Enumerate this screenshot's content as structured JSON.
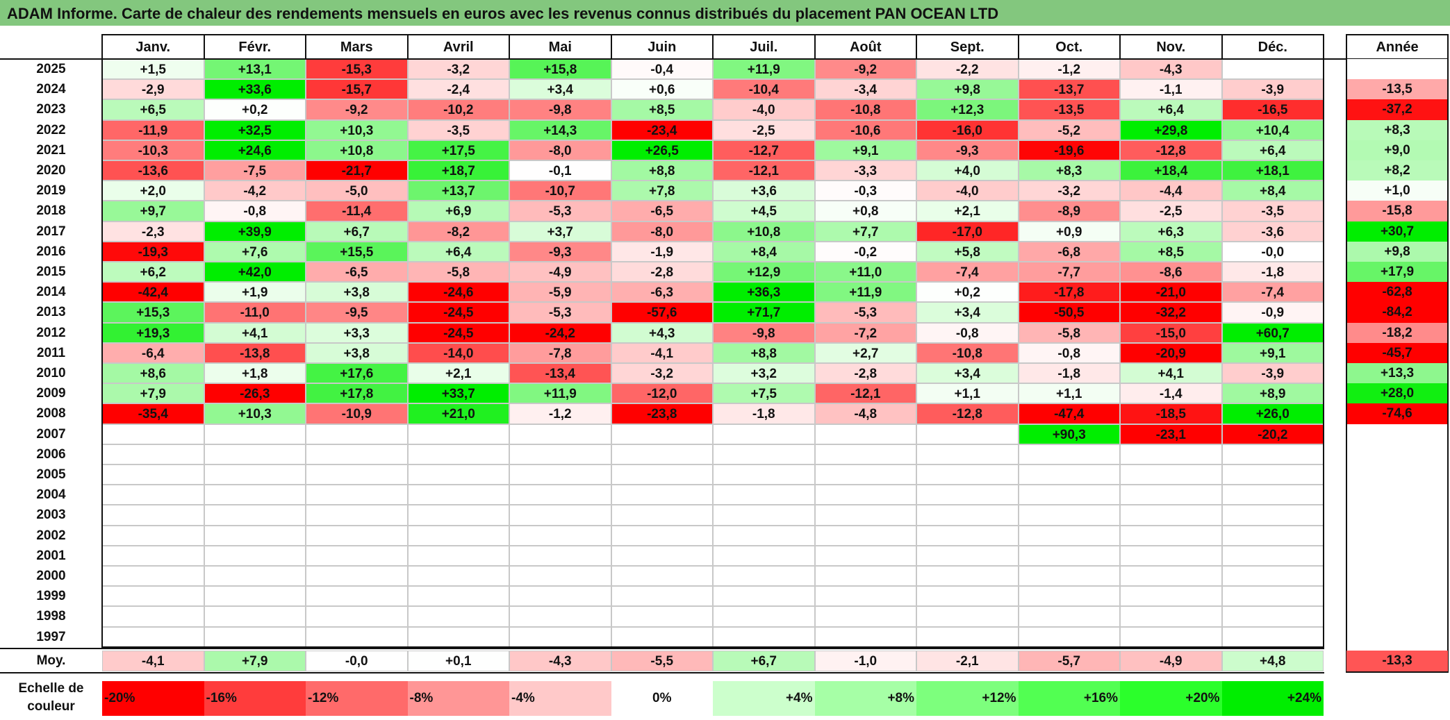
{
  "title": "ADAM Informe. Carte de chaleur des rendements mensuels en euros avec les revenus connus distribués du placement PAN OCEAN LTD",
  "chart_data": {
    "type": "heatmap",
    "title": "ADAM Informe. Carte de chaleur des rendements mensuels en euros avec les revenus connus distribués du placement PAN OCEAN LTD",
    "months": [
      "Janv.",
      "Févr.",
      "Mars",
      "Avril",
      "Mai",
      "Juin",
      "Juil.",
      "Août",
      "Sept.",
      "Oct.",
      "Nov.",
      "Déc."
    ],
    "year_header": "Année",
    "avg_label": "Moy.",
    "rows": [
      {
        "year": "2025",
        "values": [
          "+1,5",
          "+13,1",
          "-15,3",
          "-3,2",
          "+15,8",
          "-0,4",
          "+11,9",
          "-9,2",
          "-2,2",
          "-1,2",
          "-4,3",
          ""
        ],
        "annual": ""
      },
      {
        "year": "2024",
        "values": [
          "-2,9",
          "+33,6",
          "-15,7",
          "-2,4",
          "+3,4",
          "+0,6",
          "-10,4",
          "-3,4",
          "+9,8",
          "-13,7",
          "-1,1",
          "-3,9"
        ],
        "annual": "-13,5"
      },
      {
        "year": "2023",
        "values": [
          "+6,5",
          "+0,2",
          "-9,2",
          "-10,2",
          "-9,8",
          "+8,5",
          "-4,0",
          "-10,8",
          "+12,3",
          "-13,5",
          "+6,4",
          "-16,5"
        ],
        "annual": "-37,2"
      },
      {
        "year": "2022",
        "values": [
          "-11,9",
          "+32,5",
          "+10,3",
          "-3,5",
          "+14,3",
          "-23,4",
          "-2,5",
          "-10,6",
          "-16,0",
          "-5,2",
          "+29,8",
          "+10,4"
        ],
        "annual": "+8,3"
      },
      {
        "year": "2021",
        "values": [
          "-10,3",
          "+24,6",
          "+10,8",
          "+17,5",
          "-8,0",
          "+26,5",
          "-12,7",
          "+9,1",
          "-9,3",
          "-19,6",
          "-12,8",
          "+6,4"
        ],
        "annual": "+9,0"
      },
      {
        "year": "2020",
        "values": [
          "-13,6",
          "-7,5",
          "-21,7",
          "+18,7",
          "-0,1",
          "+8,8",
          "-12,1",
          "-3,3",
          "+4,0",
          "+8,3",
          "+18,4",
          "+18,1"
        ],
        "annual": "+8,2"
      },
      {
        "year": "2019",
        "values": [
          "+2,0",
          "-4,2",
          "-5,0",
          "+13,7",
          "-10,7",
          "+7,8",
          "+3,6",
          "-0,3",
          "-4,0",
          "-3,2",
          "-4,4",
          "+8,4"
        ],
        "annual": "+1,0"
      },
      {
        "year": "2018",
        "values": [
          "+9,7",
          "-0,8",
          "-11,4",
          "+6,9",
          "-5,3",
          "-6,5",
          "+4,5",
          "+0,8",
          "+2,1",
          "-8,9",
          "-2,5",
          "-3,5"
        ],
        "annual": "-15,8"
      },
      {
        "year": "2017",
        "values": [
          "-2,3",
          "+39,9",
          "+6,7",
          "-8,2",
          "+3,7",
          "-8,0",
          "+10,8",
          "+7,7",
          "-17,0",
          "+0,9",
          "+6,3",
          "-3,6"
        ],
        "annual": "+30,7"
      },
      {
        "year": "2016",
        "values": [
          "-19,3",
          "+7,6",
          "+15,5",
          "+6,4",
          "-9,3",
          "-1,9",
          "+8,4",
          "-0,2",
          "+5,8",
          "-6,8",
          "+8,5",
          "-0,0"
        ],
        "annual": "+9,8"
      },
      {
        "year": "2015",
        "values": [
          "+6,2",
          "+42,0",
          "-6,5",
          "-5,8",
          "-4,9",
          "-2,8",
          "+12,9",
          "+11,0",
          "-7,4",
          "-7,7",
          "-8,6",
          "-1,8"
        ],
        "annual": "+17,9"
      },
      {
        "year": "2014",
        "values": [
          "-42,4",
          "+1,9",
          "+3,8",
          "-24,6",
          "-5,9",
          "-6,3",
          "+36,3",
          "+11,9",
          "+0,2",
          "-17,8",
          "-21,0",
          "-7,4"
        ],
        "annual": "-62,8"
      },
      {
        "year": "2013",
        "values": [
          "+15,3",
          "-11,0",
          "-9,5",
          "-24,5",
          "-5,3",
          "-57,6",
          "+71,7",
          "-5,3",
          "+3,4",
          "-50,5",
          "-32,2",
          "-0,9"
        ],
        "annual": "-84,2"
      },
      {
        "year": "2012",
        "values": [
          "+19,3",
          "+4,1",
          "+3,3",
          "-24,5",
          "-24,2",
          "+4,3",
          "-9,8",
          "-7,2",
          "-0,8",
          "-5,8",
          "-15,0",
          "+60,7"
        ],
        "annual": "-18,2"
      },
      {
        "year": "2011",
        "values": [
          "-6,4",
          "-13,8",
          "+3,8",
          "-14,0",
          "-7,8",
          "-4,1",
          "+8,8",
          "+2,7",
          "-10,8",
          "-0,8",
          "-20,9",
          "+9,1"
        ],
        "annual": "-45,7"
      },
      {
        "year": "2010",
        "values": [
          "+8,6",
          "+1,8",
          "+17,6",
          "+2,1",
          "-13,4",
          "-3,2",
          "+3,2",
          "-2,8",
          "+3,4",
          "-1,8",
          "+4,1",
          "-3,9"
        ],
        "annual": "+13,3"
      },
      {
        "year": "2009",
        "values": [
          "+7,9",
          "-26,3",
          "+17,8",
          "+33,7",
          "+11,9",
          "-12,0",
          "+7,5",
          "-12,1",
          "+1,1",
          "+1,1",
          "-1,4",
          "+8,9"
        ],
        "annual": "+28,0"
      },
      {
        "year": "2008",
        "values": [
          "-35,4",
          "+10,3",
          "-10,9",
          "+21,0",
          "-1,2",
          "-23,8",
          "-1,8",
          "-4,8",
          "-12,8",
          "-47,4",
          "-18,5",
          "+26,0"
        ],
        "annual": "-74,6"
      },
      {
        "year": "2007",
        "values": [
          "",
          "",
          "",
          "",
          "",
          "",
          "",
          "",
          "",
          "+90,3",
          "-23,1",
          "-20,2"
        ],
        "annual": ""
      },
      {
        "year": "2006",
        "values": [
          "",
          "",
          "",
          "",
          "",
          "",
          "",
          "",
          "",
          "",
          "",
          ""
        ],
        "annual": ""
      },
      {
        "year": "2005",
        "values": [
          "",
          "",
          "",
          "",
          "",
          "",
          "",
          "",
          "",
          "",
          "",
          ""
        ],
        "annual": ""
      },
      {
        "year": "2004",
        "values": [
          "",
          "",
          "",
          "",
          "",
          "",
          "",
          "",
          "",
          "",
          "",
          ""
        ],
        "annual": ""
      },
      {
        "year": "2003",
        "values": [
          "",
          "",
          "",
          "",
          "",
          "",
          "",
          "",
          "",
          "",
          "",
          ""
        ],
        "annual": ""
      },
      {
        "year": "2002",
        "values": [
          "",
          "",
          "",
          "",
          "",
          "",
          "",
          "",
          "",
          "",
          "",
          ""
        ],
        "annual": ""
      },
      {
        "year": "2001",
        "values": [
          "",
          "",
          "",
          "",
          "",
          "",
          "",
          "",
          "",
          "",
          "",
          ""
        ],
        "annual": ""
      },
      {
        "year": "2000",
        "values": [
          "",
          "",
          "",
          "",
          "",
          "",
          "",
          "",
          "",
          "",
          "",
          ""
        ],
        "annual": ""
      },
      {
        "year": "1999",
        "values": [
          "",
          "",
          "",
          "",
          "",
          "",
          "",
          "",
          "",
          "",
          "",
          ""
        ],
        "annual": ""
      },
      {
        "year": "1998",
        "values": [
          "",
          "",
          "",
          "",
          "",
          "",
          "",
          "",
          "",
          "",
          "",
          ""
        ],
        "annual": ""
      },
      {
        "year": "1997",
        "values": [
          "",
          "",
          "",
          "",
          "",
          "",
          "",
          "",
          "",
          "",
          "",
          ""
        ],
        "annual": ""
      }
    ],
    "averages": [
      "-4,1",
      "+7,9",
      "-0,0",
      "+0,1",
      "-4,3",
      "-5,5",
      "+6,7",
      "-1,0",
      "-2,1",
      "-5,7",
      "-4,9",
      "+4,8"
    ],
    "average_annual": "-13,3",
    "scale_label_line1": "Echelle de",
    "scale_label_line2": "couleur",
    "scale": [
      "-20%",
      "-16%",
      "-12%",
      "-8%",
      "-4%",
      "0%",
      "+4%",
      "+8%",
      "+12%",
      "+16%",
      "+20%",
      "+24%"
    ],
    "scale_colors": [
      "#ff0000",
      "#ff3c3c",
      "#ff6a6a",
      "#ff9696",
      "#ffc9c9",
      "#ffffff",
      "#ccffcc",
      "#a6ffa6",
      "#7dff7d",
      "#52ff52",
      "#2bff2b",
      "#00ee00"
    ],
    "colors": {
      "negative_max": "#ff0000",
      "neutral": "#ffffff",
      "positive_max": "#00ee00",
      "title_bar": "#83c77e"
    }
  }
}
